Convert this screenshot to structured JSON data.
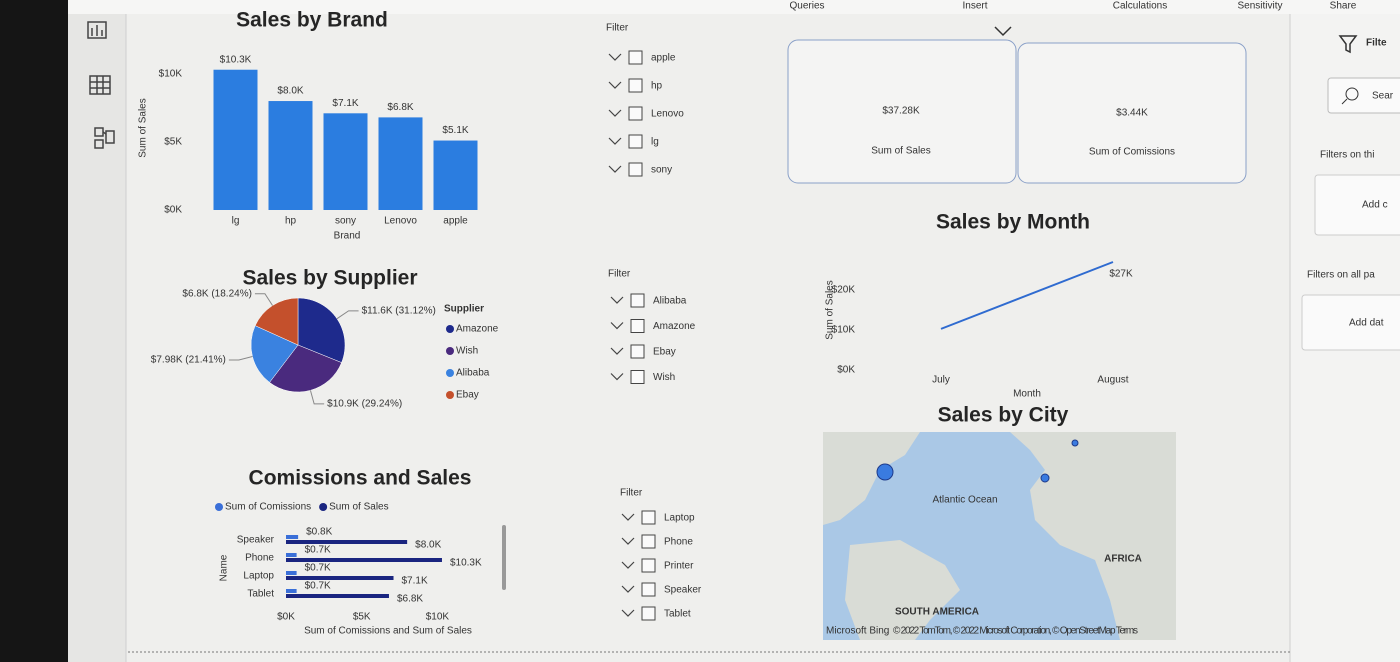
{
  "ribbon": {
    "tabs": [
      "Queries",
      "Insert",
      "Calculations",
      "Sensitivity",
      "Share"
    ]
  },
  "chart_data": [
    {
      "type": "bar",
      "title": "Sales by Brand",
      "x_label": "Brand",
      "y_label": "Sum of Sales",
      "categories": [
        "lg",
        "hp",
        "sony",
        "Lenovo",
        "apple"
      ],
      "values": [
        10300,
        8000,
        7100,
        6800,
        5100
      ],
      "value_labels": [
        "$10.3K",
        "$8.0K",
        "$7.1K",
        "$6.8K",
        "$5.1K"
      ],
      "color": "#2b7de0",
      "ylim": [
        0,
        10500
      ],
      "yticks": [
        {
          "value": 0,
          "label": "$0K"
        },
        {
          "value": 5000,
          "label": "$5K"
        },
        {
          "value": 10000,
          "label": "$10K"
        }
      ]
    },
    {
      "type": "pie",
      "title": "Sales by Supplier",
      "legend_title": "Supplier",
      "categories": [
        "Amazone",
        "Wish",
        "Alibaba",
        "Ebay"
      ],
      "values": [
        11600,
        10900,
        7980,
        6800
      ],
      "value_labels": [
        "$11.6K (31.12%)",
        "$10.9K (29.24%)",
        "$7.98K (21.41%)",
        "$6.8K (18.24%)"
      ],
      "colors": [
        "#1e2a8c",
        "#4a2a7e",
        "#3a82e0",
        "#c4502c"
      ]
    },
    {
      "type": "hbar",
      "title": "Comissions and Sales",
      "x_label": "Sum of Comissions and Sum of Sales",
      "y_label": "Name",
      "categories": [
        "Speaker",
        "Phone",
        "Laptop",
        "Tablet"
      ],
      "series": [
        {
          "name": "Sum of Comissions",
          "color": "#3a6fd8",
          "values": [
            800,
            700,
            700,
            700
          ],
          "value_labels": [
            "$0.8K",
            "$0.7K",
            "$0.7K",
            "$0.7K"
          ]
        },
        {
          "name": "Sum of Sales",
          "color": "#1a2580",
          "values": [
            8000,
            10300,
            7100,
            6800
          ],
          "value_labels": [
            "$8.0K",
            "$10.3K",
            "$7.1K",
            "$6.8K"
          ]
        }
      ],
      "xlim": [
        0,
        10500
      ],
      "xticks": [
        {
          "value": 0,
          "label": "$0K"
        },
        {
          "value": 5000,
          "label": "$5K"
        },
        {
          "value": 10000,
          "label": "$10K"
        }
      ]
    },
    {
      "type": "line",
      "title": "Sales by Month",
      "x_label": "Month",
      "y_label": "Sum of Sales",
      "categories": [
        "July",
        "August"
      ],
      "values": [
        10280,
        27000
      ],
      "value_labels": [
        null,
        "$27K"
      ],
      "color": "#2f6bd0",
      "ylim": [
        0,
        30000
      ],
      "yticks": [
        {
          "value": 0,
          "label": "$0K"
        },
        {
          "value": 10000,
          "label": "$10K"
        },
        {
          "value": 20000,
          "label": "$20K"
        }
      ]
    }
  ],
  "cards": [
    {
      "value": "$37.28K",
      "label": "Sum of Sales"
    },
    {
      "value": "$3.44K",
      "label": "Sum of Comissions"
    }
  ],
  "slicers": [
    {
      "title": "Filter",
      "items": [
        "apple",
        "hp",
        "Lenovo",
        "lg",
        "sony"
      ]
    },
    {
      "title": "Filter",
      "items": [
        "Alibaba",
        "Amazone",
        "Ebay",
        "Wish"
      ]
    },
    {
      "title": "Filter",
      "items": [
        "Laptop",
        "Phone",
        "Printer",
        "Speaker",
        "Tablet"
      ]
    }
  ],
  "map": {
    "title": "Sales by City",
    "labels": [
      "Atlantic Ocean",
      "AFRICA",
      "SOUTH AMERICA"
    ],
    "attribution": [
      "Microsoft Bing",
      "© 2022 TomTom, © 2022 Microsoft Corporation, © OpenStreetMap Terms"
    ]
  },
  "filters_pane": {
    "title": "Filte",
    "search": "Sear",
    "sections": [
      {
        "title": "Filters on thi",
        "add": "Add c"
      },
      {
        "title": "Filters on all pa",
        "add": "Add dat"
      }
    ]
  }
}
